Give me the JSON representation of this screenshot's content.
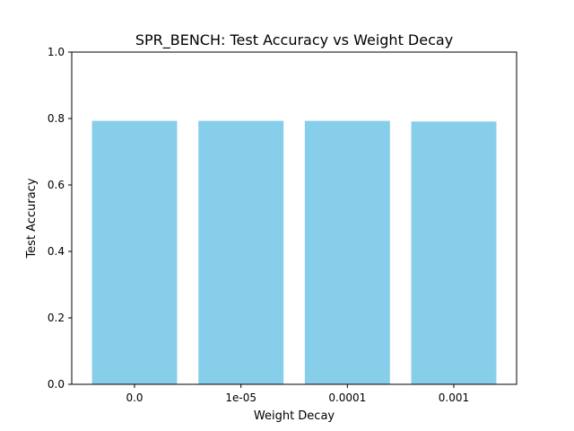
{
  "chart_data": {
    "type": "bar",
    "title": "SPR_BENCH: Test Accuracy vs Weight Decay",
    "xlabel": "Weight Decay",
    "ylabel": "Test Accuracy",
    "categories": [
      "0.0",
      "1e-05",
      "0.0001",
      "0.001"
    ],
    "values": [
      0.793,
      0.793,
      0.793,
      0.791
    ],
    "ylim": [
      0,
      1.0
    ],
    "yticks": [
      "0.0",
      "0.2",
      "0.4",
      "0.6",
      "0.8",
      "1.0"
    ],
    "bar_color": "#87CEEB",
    "grid": false,
    "legend": "none"
  }
}
